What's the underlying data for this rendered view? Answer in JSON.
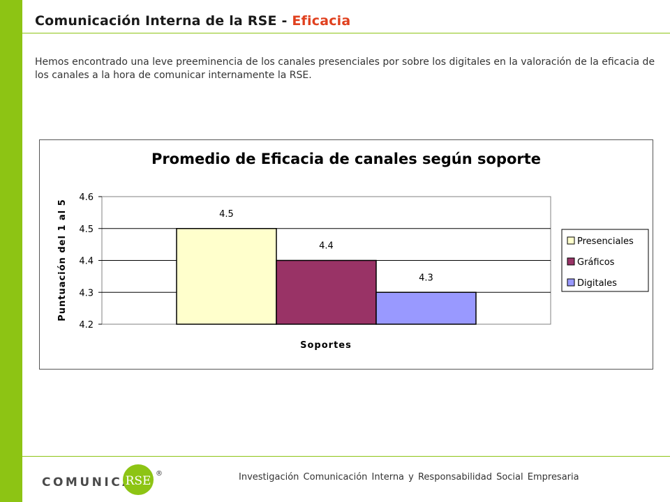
{
  "header": {
    "title_main": "Comunicación Interna de la RSE - ",
    "title_accent": "Eficacia"
  },
  "intro_text": "Hemos encontrado una leve preeminencia de los canales presenciales por sobre los digitales en la valoración de la eficacia de los canales a la hora de comunicar internamente la RSE.",
  "chart_data": {
    "type": "bar",
    "title": "Promedio de Eficacia de canales según soporte",
    "xlabel": "Soportes",
    "ylabel": "Puntuación del 1 al 5",
    "ylim": [
      4.2,
      4.6
    ],
    "yticks": [
      "4.2",
      "4.3",
      "4.4",
      "4.5",
      "4.6"
    ],
    "grid": true,
    "legend_position": "right",
    "series": [
      {
        "name": "Presenciales",
        "value": 4.5,
        "label": "4.5",
        "color": "#ffffcc"
      },
      {
        "name": "Gráficos",
        "value": 4.4,
        "label": "4.4",
        "color": "#993366"
      },
      {
        "name": "Digitales",
        "value": 4.3,
        "label": "4.3",
        "color": "#9999ff"
      }
    ]
  },
  "footer": {
    "logo_text": "COMUNICA",
    "logo_badge": "RSE",
    "registered": "®",
    "tagline": "Investigación Comunicación Interna y Responsabilidad Social Empresaria"
  },
  "colors": {
    "accent_green": "#8dc414",
    "title_accent": "#e0401e"
  }
}
